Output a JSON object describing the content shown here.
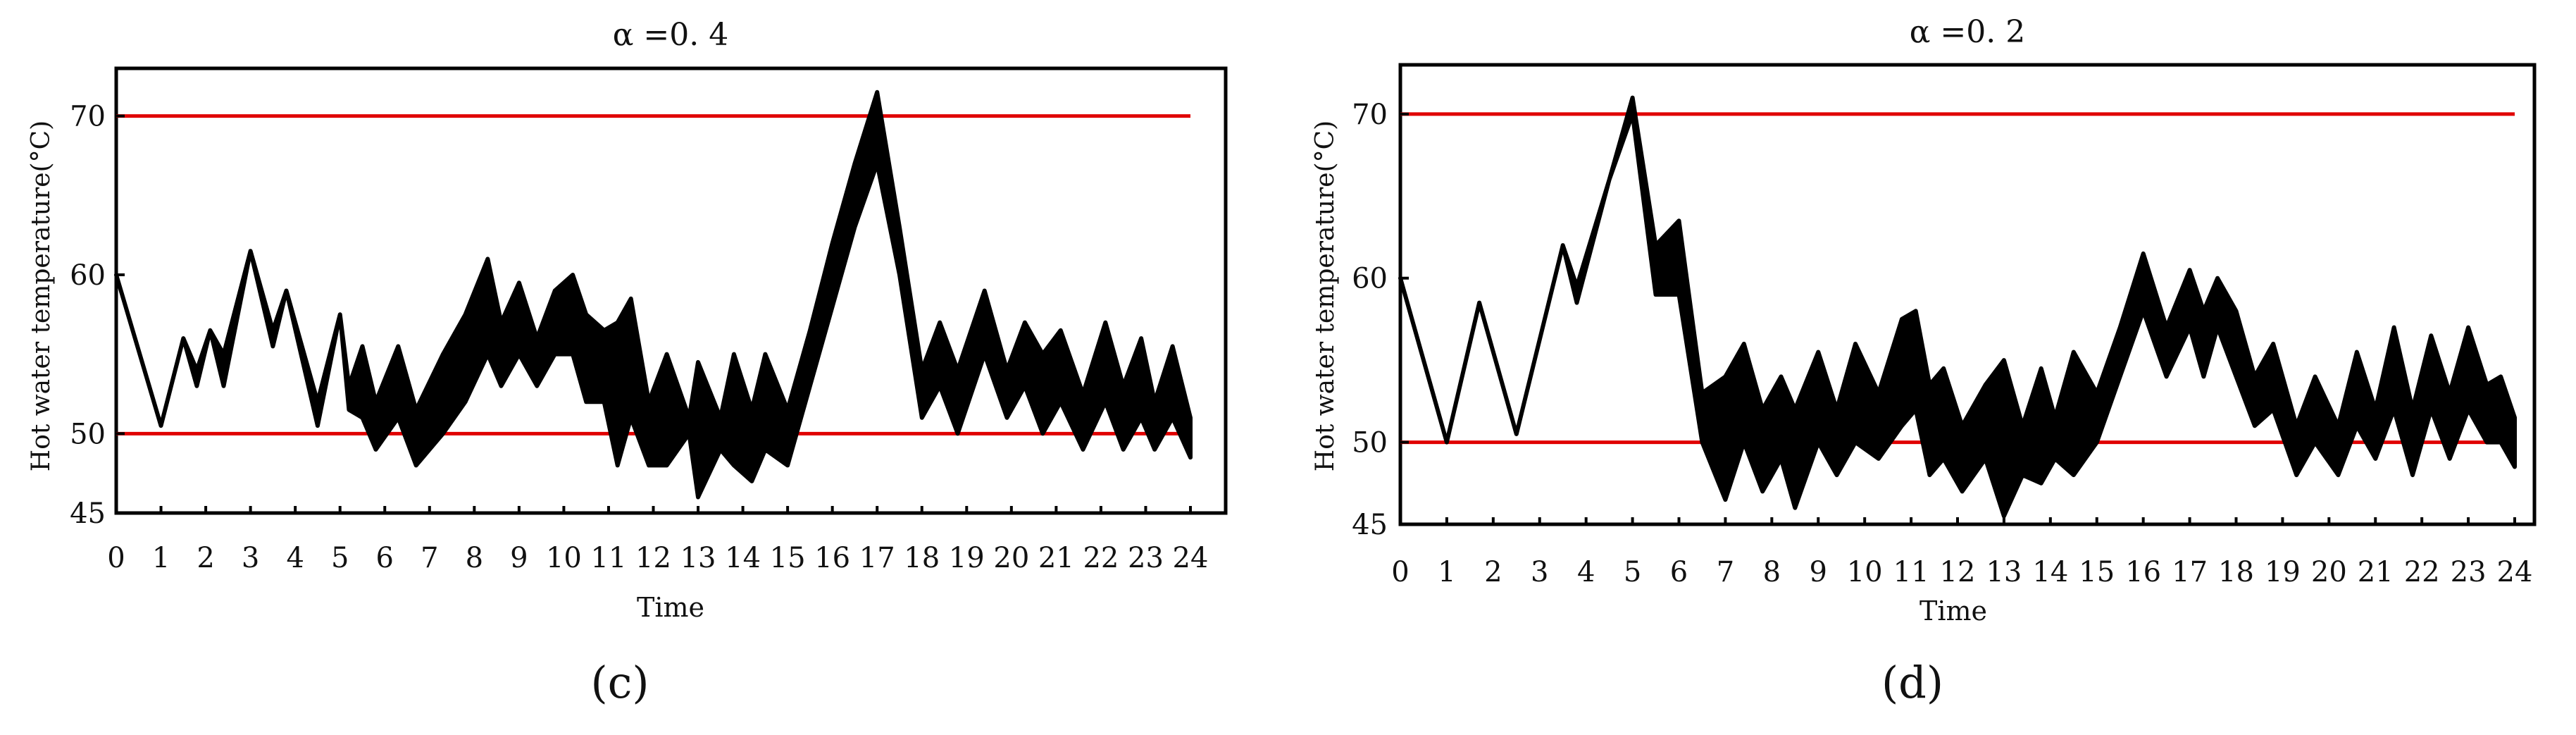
{
  "chart_data": [
    {
      "type": "line",
      "panel_label": "(c)",
      "title": "α =0. 4",
      "xlabel": "Time",
      "ylabel": "Hot water temperature(°C)",
      "xlim": [
        0,
        24
      ],
      "ylim": [
        45,
        73
      ],
      "xticks": [
        "0",
        "1",
        "2",
        "3",
        "4",
        "5",
        "6",
        "7",
        "8",
        "9",
        "10",
        "11",
        "12",
        "13",
        "14",
        "15",
        "16",
        "17",
        "18",
        "19",
        "20",
        "21",
        "22",
        "23",
        "24"
      ],
      "yticks": [
        "45",
        "50",
        "60",
        "70"
      ],
      "reference_lines": [
        {
          "y": 70,
          "color": "#e00000"
        },
        {
          "y": 50,
          "color": "#e00000"
        }
      ],
      "series": [
        {
          "color": "#000000",
          "x": [
            0,
            1,
            1.5,
            1.8,
            2.1,
            2.4,
            3,
            3.5,
            3.8,
            4.5,
            5,
            5.2,
            5.5,
            5.8,
            6.3,
            6.7,
            7.3,
            7.8,
            8.3,
            8.6,
            9,
            9.4,
            9.8,
            10.2,
            10.5,
            10.9,
            11.2,
            11.5,
            11.9,
            12.3,
            12.8,
            13,
            13.5,
            13.8,
            14.2,
            14.5,
            15,
            15.5,
            16,
            16.5,
            17,
            17.5,
            18,
            18.4,
            18.8,
            19.4,
            19.9,
            20.3,
            20.7,
            21.1,
            21.6,
            22.1,
            22.5,
            22.9,
            23.2,
            23.6,
            24
          ],
          "y_upper": [
            60,
            50.5,
            56,
            54,
            56.5,
            55,
            61.5,
            56.5,
            59,
            52,
            57.5,
            53,
            55.5,
            52,
            55.5,
            51.5,
            55,
            57.5,
            61,
            57,
            59.5,
            56,
            59,
            60,
            57.5,
            56.5,
            57,
            58.5,
            52,
            55,
            51,
            54.5,
            51,
            55,
            51.5,
            55,
            51.5,
            56.5,
            62,
            67,
            71.5,
            63,
            54,
            57,
            54,
            59,
            54,
            57,
            55,
            56.5,
            52.5,
            57,
            53,
            56,
            52,
            55.5,
            51
          ],
          "y_lower": [
            60,
            50.5,
            56,
            53,
            56.5,
            53,
            61.5,
            55.5,
            59,
            50.5,
            57.5,
            51.5,
            51,
            49,
            51,
            48,
            50,
            52,
            55,
            53,
            55,
            53,
            55,
            55,
            52,
            52,
            48,
            51,
            48,
            48,
            50,
            46,
            49,
            48,
            47,
            49,
            48,
            53,
            58,
            63,
            67,
            60,
            51,
            53,
            50,
            55,
            51,
            53,
            50,
            52,
            49,
            52,
            49,
            51,
            49,
            51,
            48.5
          ]
        }
      ]
    },
    {
      "type": "line",
      "panel_label": "(d)",
      "title": "α =0. 2",
      "xlabel": "Time",
      "ylabel": "Hot water temperature(°C)",
      "xlim": [
        0,
        24
      ],
      "ylim": [
        45,
        73
      ],
      "xticks": [
        "0",
        "1",
        "2",
        "3",
        "4",
        "5",
        "6",
        "7",
        "8",
        "9",
        "10",
        "11",
        "12",
        "13",
        "14",
        "15",
        "16",
        "17",
        "18",
        "19",
        "20",
        "21",
        "22",
        "23",
        "24"
      ],
      "yticks": [
        "45",
        "50",
        "60",
        "70"
      ],
      "reference_lines": [
        {
          "y": 70,
          "color": "#e00000"
        },
        {
          "y": 50,
          "color": "#e00000"
        }
      ],
      "series": [
        {
          "color": "#000000",
          "x": [
            0,
            1,
            1.7,
            2.5,
            3.5,
            3.8,
            4.5,
            5,
            5.5,
            6,
            6.5,
            7,
            7.4,
            7.8,
            8.2,
            8.5,
            9,
            9.4,
            9.8,
            10.3,
            10.8,
            11.1,
            11.4,
            11.7,
            12.1,
            12.6,
            13,
            13.4,
            13.8,
            14.1,
            14.5,
            15,
            15.5,
            16,
            16.5,
            17,
            17.3,
            17.6,
            18,
            18.4,
            18.8,
            19.3,
            19.7,
            20.2,
            20.6,
            21,
            21.4,
            21.8,
            22.2,
            22.6,
            23,
            23.4,
            23.7,
            24
          ],
          "y_upper": [
            60,
            50,
            58.5,
            50.5,
            62,
            59.5,
            66,
            71,
            62,
            63.5,
            53,
            54,
            56,
            52,
            54,
            52,
            55.5,
            52,
            56,
            53,
            57.5,
            58,
            53.5,
            54.5,
            51,
            53.5,
            55,
            51,
            54.5,
            51.5,
            55.5,
            53,
            57,
            61.5,
            57,
            60.5,
            58,
            60,
            58,
            54,
            56,
            51,
            54,
            51,
            55.5,
            52,
            57,
            52,
            56.5,
            53,
            57,
            53.5,
            54,
            51.5
          ],
          "y_lower": [
            60,
            50,
            58.5,
            50.5,
            62,
            58.5,
            66,
            70,
            59,
            59,
            50,
            46.5,
            50,
            47,
            49,
            46,
            50,
            48,
            50,
            49,
            51,
            52,
            48,
            49,
            47,
            49,
            45.5,
            48,
            47.5,
            49,
            48,
            50,
            54,
            58,
            54,
            57,
            54,
            57,
            54,
            51,
            52,
            48,
            50,
            48,
            51,
            49,
            52,
            48,
            52,
            49,
            52,
            50,
            50,
            48.5
          ]
        }
      ]
    }
  ]
}
